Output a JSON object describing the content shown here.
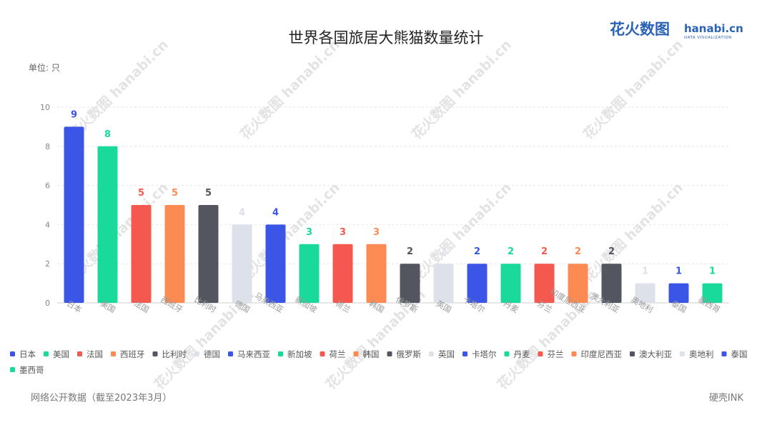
{
  "title": "世界各国旅居大熊猫数量统计",
  "unit_label": "单位: 只",
  "source": "网络公开数据（截至2023年3月）",
  "credit": "硬壳INK",
  "logo": {
    "cn": "花火数图",
    "en": "hanabi.cn",
    "sub": "DATA VISUALIZATION",
    "watermark": "花火数图 hanabi.cn"
  },
  "colors": {
    "blue": "#3b55e6",
    "teal": "#19d99b",
    "red": "#f5584e",
    "orange": "#fb8b52",
    "dark": "#53555f",
    "light": "#dde1ea"
  },
  "chart_data": {
    "type": "bar",
    "title": "世界各国旅居大熊猫数量统计",
    "ylabel": "单位: 只",
    "ylim": [
      0,
      10
    ],
    "yticks": [
      0,
      2,
      4,
      6,
      8,
      10
    ],
    "grid": true,
    "legend_position": "bottom",
    "categories": [
      "日本",
      "美国",
      "法国",
      "西班牙",
      "比利时",
      "德国",
      "马来西亚",
      "新加坡",
      "荷兰",
      "韩国",
      "俄罗斯",
      "英国",
      "卡塔尔",
      "丹麦",
      "芬兰",
      "印度尼西亚",
      "澳大利亚",
      "奥地利",
      "泰国",
      "墨西哥"
    ],
    "values": [
      9,
      8,
      5,
      5,
      5,
      4,
      4,
      3,
      3,
      3,
      2,
      2,
      2,
      2,
      2,
      2,
      2,
      1,
      1,
      1
    ],
    "bar_colors": [
      "#3b55e6",
      "#19d99b",
      "#f5584e",
      "#fb8b52",
      "#53555f",
      "#dde1ea",
      "#3b55e6",
      "#19d99b",
      "#f5584e",
      "#fb8b52",
      "#53555f",
      "#dde1ea",
      "#3b55e6",
      "#19d99b",
      "#f5584e",
      "#fb8b52",
      "#53555f",
      "#dde1ea",
      "#3b55e6",
      "#19d99b"
    ]
  }
}
